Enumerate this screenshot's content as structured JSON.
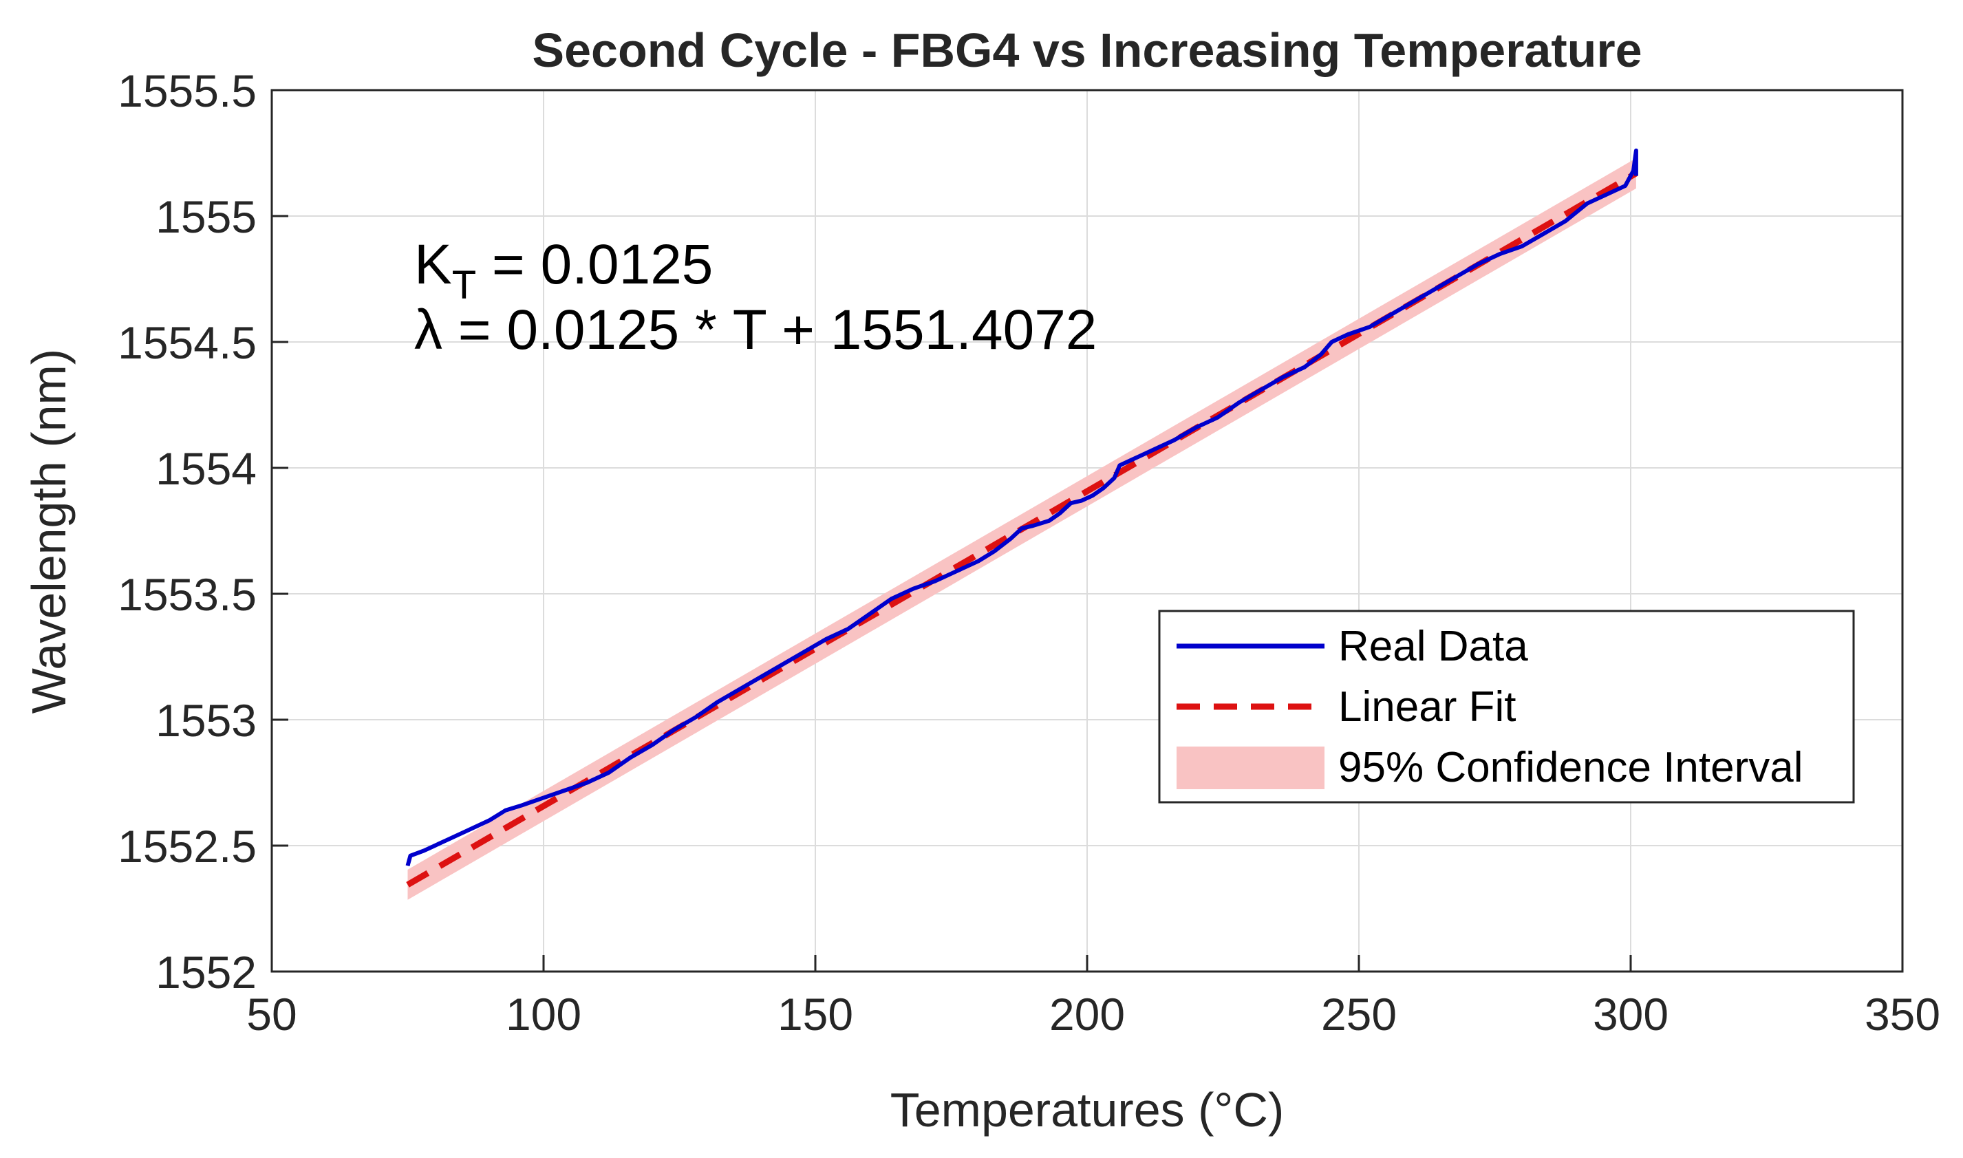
{
  "chart_data": {
    "type": "line",
    "title": "Second Cycle - FBG4 vs Increasing Temperature",
    "xlabel": "Temperatures (°C)",
    "ylabel": "Wavelength (nm)",
    "xlim": [
      50,
      350
    ],
    "ylim": [
      1552,
      1555.5
    ],
    "xticks": [
      50,
      100,
      150,
      200,
      250,
      300,
      350
    ],
    "yticks": [
      1552,
      1552.5,
      1553,
      1553.5,
      1554,
      1554.5,
      1555,
      1555.5
    ],
    "grid": true,
    "legend": {
      "placement": "lower-right"
    },
    "annotation": {
      "kt_label": "K",
      "kt_sub": "T",
      "kt_value": " = 0.0125",
      "equation": "λ = 0.0125 * T + 1551.4072"
    },
    "fit": {
      "slope": 0.0125,
      "intercept": 1551.4072,
      "x_range": [
        75,
        301
      ],
      "ci_halfwidth": 0.06
    },
    "series": [
      {
        "name": "Real Data",
        "style": "solid",
        "color": "#0000CC",
        "x": [
          75,
          75.5,
          78,
          82,
          86,
          90,
          93,
          96,
          100,
          104,
          108,
          112,
          116,
          120,
          124,
          128,
          132,
          136,
          140,
          144,
          148,
          152,
          156,
          160,
          164,
          168,
          172,
          176,
          180,
          183,
          186,
          188,
          190,
          193,
          195,
          197,
          199,
          201,
          203,
          205,
          206,
          208,
          212,
          216,
          220,
          224,
          228,
          232,
          236,
          240,
          243,
          245,
          248,
          252,
          256,
          260,
          264,
          268,
          272,
          276,
          280,
          284,
          288,
          292,
          296,
          299,
          300.5,
          301,
          301
        ],
        "values": [
          1552.42,
          1552.46,
          1552.48,
          1552.52,
          1552.56,
          1552.6,
          1552.64,
          1552.66,
          1552.69,
          1552.72,
          1552.75,
          1552.79,
          1552.85,
          1552.9,
          1552.96,
          1553.01,
          1553.07,
          1553.12,
          1553.17,
          1553.22,
          1553.27,
          1553.32,
          1553.36,
          1553.42,
          1553.48,
          1553.52,
          1553.55,
          1553.59,
          1553.63,
          1553.67,
          1553.72,
          1553.76,
          1553.77,
          1553.79,
          1553.82,
          1553.86,
          1553.87,
          1553.89,
          1553.92,
          1553.96,
          1554.01,
          1554.03,
          1554.07,
          1554.11,
          1554.16,
          1554.2,
          1554.26,
          1554.31,
          1554.36,
          1554.4,
          1554.45,
          1554.5,
          1554.53,
          1554.56,
          1554.61,
          1554.66,
          1554.71,
          1554.76,
          1554.81,
          1554.85,
          1554.88,
          1554.93,
          1554.98,
          1555.05,
          1555.09,
          1555.12,
          1555.18,
          1555.26,
          1555.16
        ]
      },
      {
        "name": "Linear Fit",
        "style": "dashed",
        "color": "#DD1111",
        "x": [
          75,
          301
        ],
        "values": [
          1552.3447,
          1555.1697
        ]
      },
      {
        "name": "95% Confidence Interval",
        "style": "band",
        "color": "#F9C3C3"
      }
    ]
  }
}
